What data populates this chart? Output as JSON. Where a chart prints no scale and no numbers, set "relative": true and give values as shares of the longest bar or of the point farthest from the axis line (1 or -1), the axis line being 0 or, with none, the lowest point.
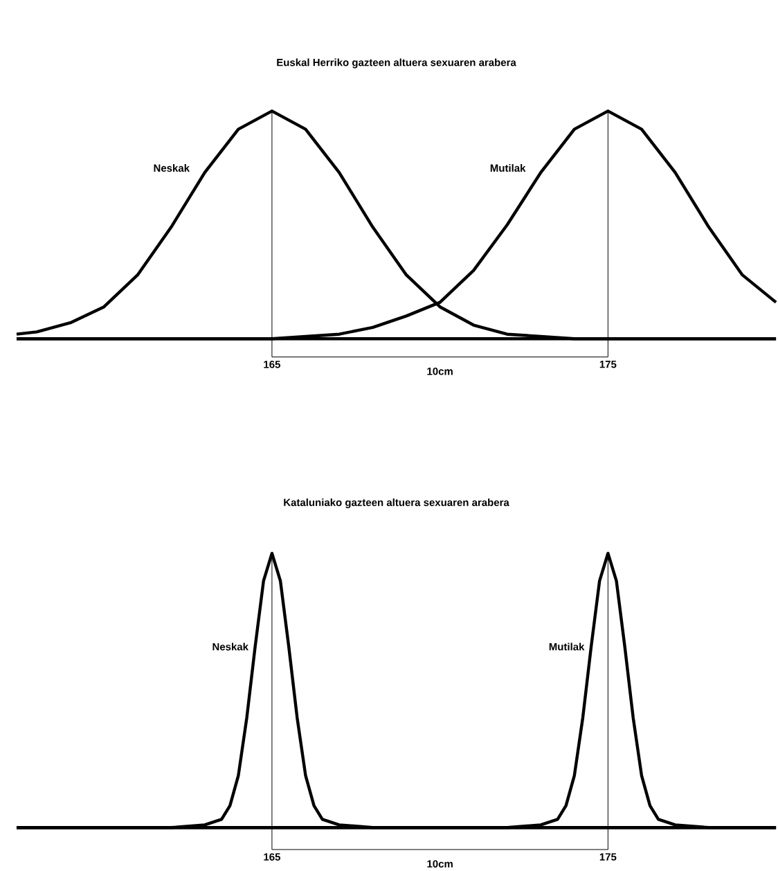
{
  "chart_data": [
    {
      "type": "line",
      "title": "Euskal Herriko gazteen altuera sexuaren arabera",
      "relative": true,
      "xlim": [
        157.4,
        180
      ],
      "xticks": [
        165,
        175
      ],
      "annotations": [
        "10cm"
      ],
      "series": [
        {
          "name": "Neskak",
          "color": "#000000",
          "x": [
            157.4,
            158,
            159,
            160,
            161,
            162,
            163,
            164,
            165,
            166,
            167,
            168,
            169,
            170,
            171,
            172,
            173,
            174,
            175,
            180
          ],
          "values": [
            0.02,
            0.03,
            0.07,
            0.14,
            0.28,
            0.49,
            0.73,
            0.92,
            1,
            0.92,
            0.73,
            0.49,
            0.28,
            0.14,
            0.06,
            0.02,
            0.01,
            0,
            0,
            0
          ]
        },
        {
          "name": "Mutilak",
          "color": "#000000",
          "x": [
            157.4,
            165,
            166,
            167,
            168,
            169,
            170,
            171,
            172,
            173,
            174,
            175,
            176,
            177,
            178,
            179,
            180
          ],
          "values": [
            0,
            0,
            0.01,
            0.02,
            0.05,
            0.1,
            0.16,
            0.3,
            0.5,
            0.73,
            0.92,
            1,
            0.92,
            0.73,
            0.49,
            0.28,
            0.16
          ]
        }
      ],
      "ref_lines": [
        {
          "axis": "x",
          "value": 165
        },
        {
          "axis": "x",
          "value": 175
        }
      ]
    },
    {
      "type": "line",
      "title": "Kataluniako gazteen altuera sexuaren arabera",
      "relative": true,
      "xlim": [
        157.4,
        180
      ],
      "xticks": [
        165,
        175
      ],
      "annotations": [
        "10cm"
      ],
      "series": [
        {
          "name": "Neskak",
          "color": "#000000",
          "x": [
            157.4,
            162,
            163,
            163.5,
            163.75,
            164,
            164.25,
            164.5,
            164.75,
            165,
            165.25,
            165.5,
            165.75,
            166,
            166.25,
            166.5,
            167,
            168,
            180
          ],
          "values": [
            0,
            0,
            0.01,
            0.03,
            0.08,
            0.19,
            0.4,
            0.66,
            0.9,
            1,
            0.9,
            0.66,
            0.4,
            0.19,
            0.08,
            0.03,
            0.01,
            0,
            0
          ]
        },
        {
          "name": "Mutilak",
          "color": "#000000",
          "x": [
            157.4,
            172,
            173,
            173.5,
            173.75,
            174,
            174.25,
            174.5,
            174.75,
            175,
            175.25,
            175.5,
            175.75,
            176,
            176.25,
            176.5,
            177,
            178,
            180
          ],
          "values": [
            0,
            0,
            0.01,
            0.03,
            0.08,
            0.19,
            0.4,
            0.66,
            0.9,
            1,
            0.9,
            0.66,
            0.4,
            0.19,
            0.08,
            0.03,
            0.01,
            0,
            0
          ]
        }
      ],
      "ref_lines": [
        {
          "axis": "x",
          "value": 165
        },
        {
          "axis": "x",
          "value": 175
        }
      ]
    }
  ]
}
